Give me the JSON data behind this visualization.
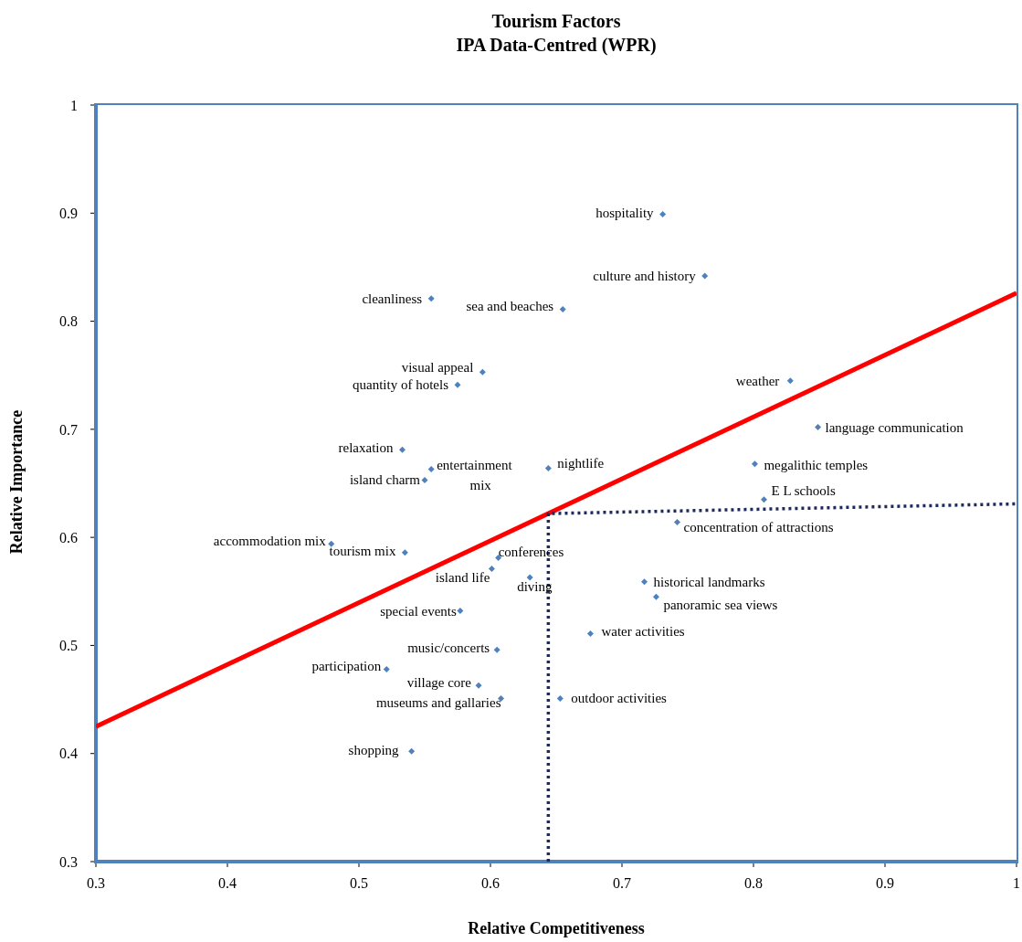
{
  "chart_data": {
    "type": "scatter",
    "title": "Tourism Factors",
    "subtitle": "IPA Data-Centred (WPR)",
    "xlabel": "Relative Competitiveness",
    "ylabel": "Relative Importance",
    "xlim": [
      0.3,
      1
    ],
    "xticks": [
      0.3,
      0.4,
      0.5,
      0.6,
      0.7,
      0.8,
      0.9,
      1
    ],
    "ylim": [
      0.3,
      1
    ],
    "yticks": [
      0.3,
      0.4,
      0.5,
      0.6,
      0.7,
      0.8,
      0.9,
      1
    ],
    "series": [
      {
        "color": "#4f81bd",
        "marker": "diamond",
        "x": [
          0.731,
          0.763,
          0.555,
          0.655,
          0.594,
          0.575,
          0.828,
          0.849,
          0.533,
          0.555,
          0.55,
          0.644,
          0.801,
          0.808,
          0.742,
          0.479,
          0.535,
          0.606,
          0.601,
          0.63,
          0.577,
          0.605,
          0.521,
          0.591,
          0.608,
          0.54,
          0.653,
          0.717,
          0.726,
          0.676
        ],
        "values": [
          0.899,
          0.842,
          0.821,
          0.811,
          0.753,
          0.741,
          0.745,
          0.702,
          0.681,
          0.663,
          0.653,
          0.664,
          0.668,
          0.635,
          0.614,
          0.594,
          0.586,
          0.581,
          0.571,
          0.563,
          0.532,
          0.496,
          0.478,
          0.463,
          0.451,
          0.402,
          0.451,
          0.559,
          0.545,
          0.511
        ]
      },
      {
        "type": "line",
        "color": "#ff0000",
        "x": [
          0.3,
          1
        ],
        "values": [
          0.425,
          0.826
        ]
      },
      {
        "type": "line",
        "color": "#1f2a5c",
        "line_style": "dotted",
        "x": [
          0.644,
          0.644,
          1
        ],
        "values": [
          0.3,
          0.622,
          0.631
        ]
      }
    ],
    "annotations": [
      {
        "text": "hospitality",
        "x": 0.731,
        "y": 0.899
      },
      {
        "text": "culture and history",
        "x": 0.763,
        "y": 0.842
      },
      {
        "text": "cleanliness",
        "x": 0.555,
        "y": 0.821
      },
      {
        "text": "sea and beaches",
        "x": 0.655,
        "y": 0.811
      },
      {
        "text": "visual appeal",
        "x": 0.594,
        "y": 0.753
      },
      {
        "text": "quantity of hotels",
        "x": 0.575,
        "y": 0.741
      },
      {
        "text": "weather",
        "x": 0.828,
        "y": 0.745
      },
      {
        "text": "language communication",
        "x": 0.849,
        "y": 0.702
      },
      {
        "text": "relaxation",
        "x": 0.533,
        "y": 0.681
      },
      {
        "text": "entertainment mix",
        "x": 0.555,
        "y": 0.663
      },
      {
        "text": "island charm",
        "x": 0.55,
        "y": 0.653
      },
      {
        "text": "nightlife",
        "x": 0.644,
        "y": 0.664
      },
      {
        "text": "megalithic temples",
        "x": 0.801,
        "y": 0.668
      },
      {
        "text": "E L schools",
        "x": 0.808,
        "y": 0.635
      },
      {
        "text": "concentration of attractions",
        "x": 0.742,
        "y": 0.614
      },
      {
        "text": "accommodation mix",
        "x": 0.479,
        "y": 0.594
      },
      {
        "text": "tourism mix",
        "x": 0.535,
        "y": 0.586
      },
      {
        "text": "conferences",
        "x": 0.606,
        "y": 0.581
      },
      {
        "text": "island life",
        "x": 0.601,
        "y": 0.571
      },
      {
        "text": "diving",
        "x": 0.63,
        "y": 0.563
      },
      {
        "text": "special events",
        "x": 0.577,
        "y": 0.532
      },
      {
        "text": "music/concerts",
        "x": 0.605,
        "y": 0.496
      },
      {
        "text": "participation",
        "x": 0.521,
        "y": 0.478
      },
      {
        "text": "village core",
        "x": 0.591,
        "y": 0.463
      },
      {
        "text": "museums and gallaries",
        "x": 0.608,
        "y": 0.451
      },
      {
        "text": "shopping",
        "x": 0.54,
        "y": 0.402
      },
      {
        "text": "outdoor activities",
        "x": 0.653,
        "y": 0.451
      },
      {
        "text": "historical landmarks",
        "x": 0.717,
        "y": 0.559
      },
      {
        "text": "panoramic sea views",
        "x": 0.726,
        "y": 0.545
      },
      {
        "text": "water activities",
        "x": 0.676,
        "y": 0.511
      }
    ]
  }
}
